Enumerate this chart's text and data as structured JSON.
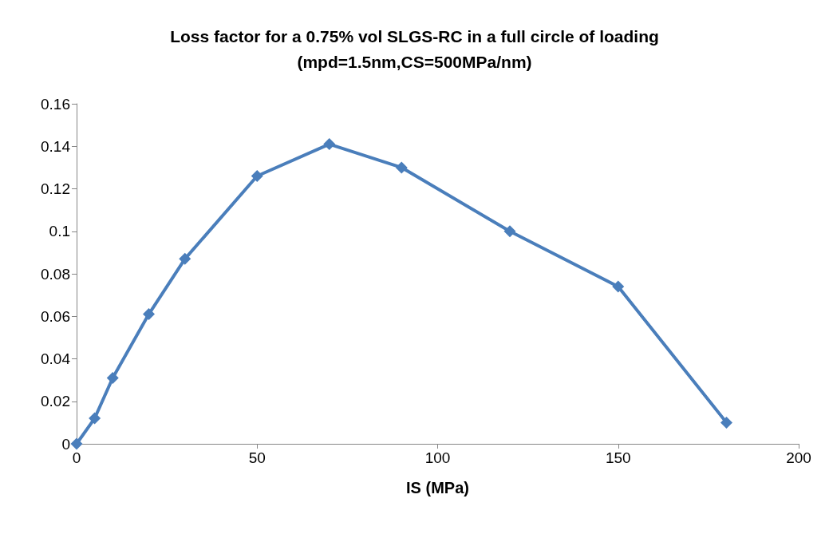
{
  "chart_data": {
    "type": "line",
    "title": "Loss factor for a 0.75% vol SLGS-RC in a full circle of loading",
    "subtitle": "(mpd=1.5nm,CS=500MPa/nm)",
    "xlabel": "IS (MPa)",
    "x": [
      0,
      5,
      10,
      20,
      30,
      50,
      70,
      90,
      120,
      150,
      180
    ],
    "series": [
      {
        "color": "#4a7ebb",
        "values": [
          0,
          0.012,
          0.031,
          0.061,
          0.087,
          0.126,
          0.141,
          0.13,
          0.1,
          0.074,
          0.01
        ]
      }
    ],
    "xlim": [
      0,
      200
    ],
    "xticks": [
      0,
      50,
      100,
      150,
      200
    ],
    "ylim": [
      0,
      0.16
    ],
    "yticks": [
      0,
      0.02,
      0.04,
      0.06,
      0.08,
      0.1,
      0.12,
      0.14,
      0.16
    ],
    "grid": false,
    "marker": "diamond",
    "line_style": "solid"
  }
}
